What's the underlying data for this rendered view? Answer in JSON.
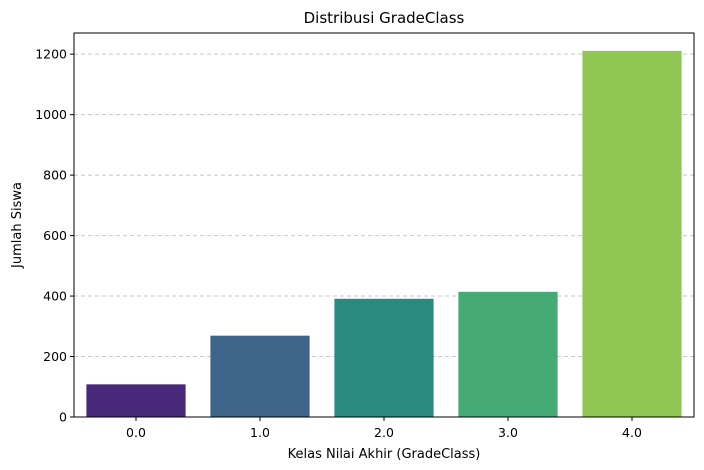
{
  "chart_data": {
    "type": "bar",
    "title": "Distribusi GradeClass",
    "xlabel": "Kelas Nilai Akhir (GradeClass)",
    "ylabel": "Jumlah Siswa",
    "categories": [
      "0.0",
      "1.0",
      "2.0",
      "3.0",
      "4.0"
    ],
    "values": [
      108,
      269,
      391,
      414,
      1211
    ],
    "ylim": [
      0,
      1270
    ],
    "yticks": [
      0,
      200,
      400,
      600,
      800,
      1000,
      1200
    ],
    "ytick_labels": [
      "0",
      "200",
      "400",
      "600",
      "800",
      "1000",
      "1200"
    ],
    "grid": "horizontal dashed",
    "legend": "none",
    "colors": [
      "#482878",
      "#3e6589",
      "#2a8a80",
      "#45aa76",
      "#8fc654"
    ],
    "grid_color": "#c8c8c8"
  }
}
